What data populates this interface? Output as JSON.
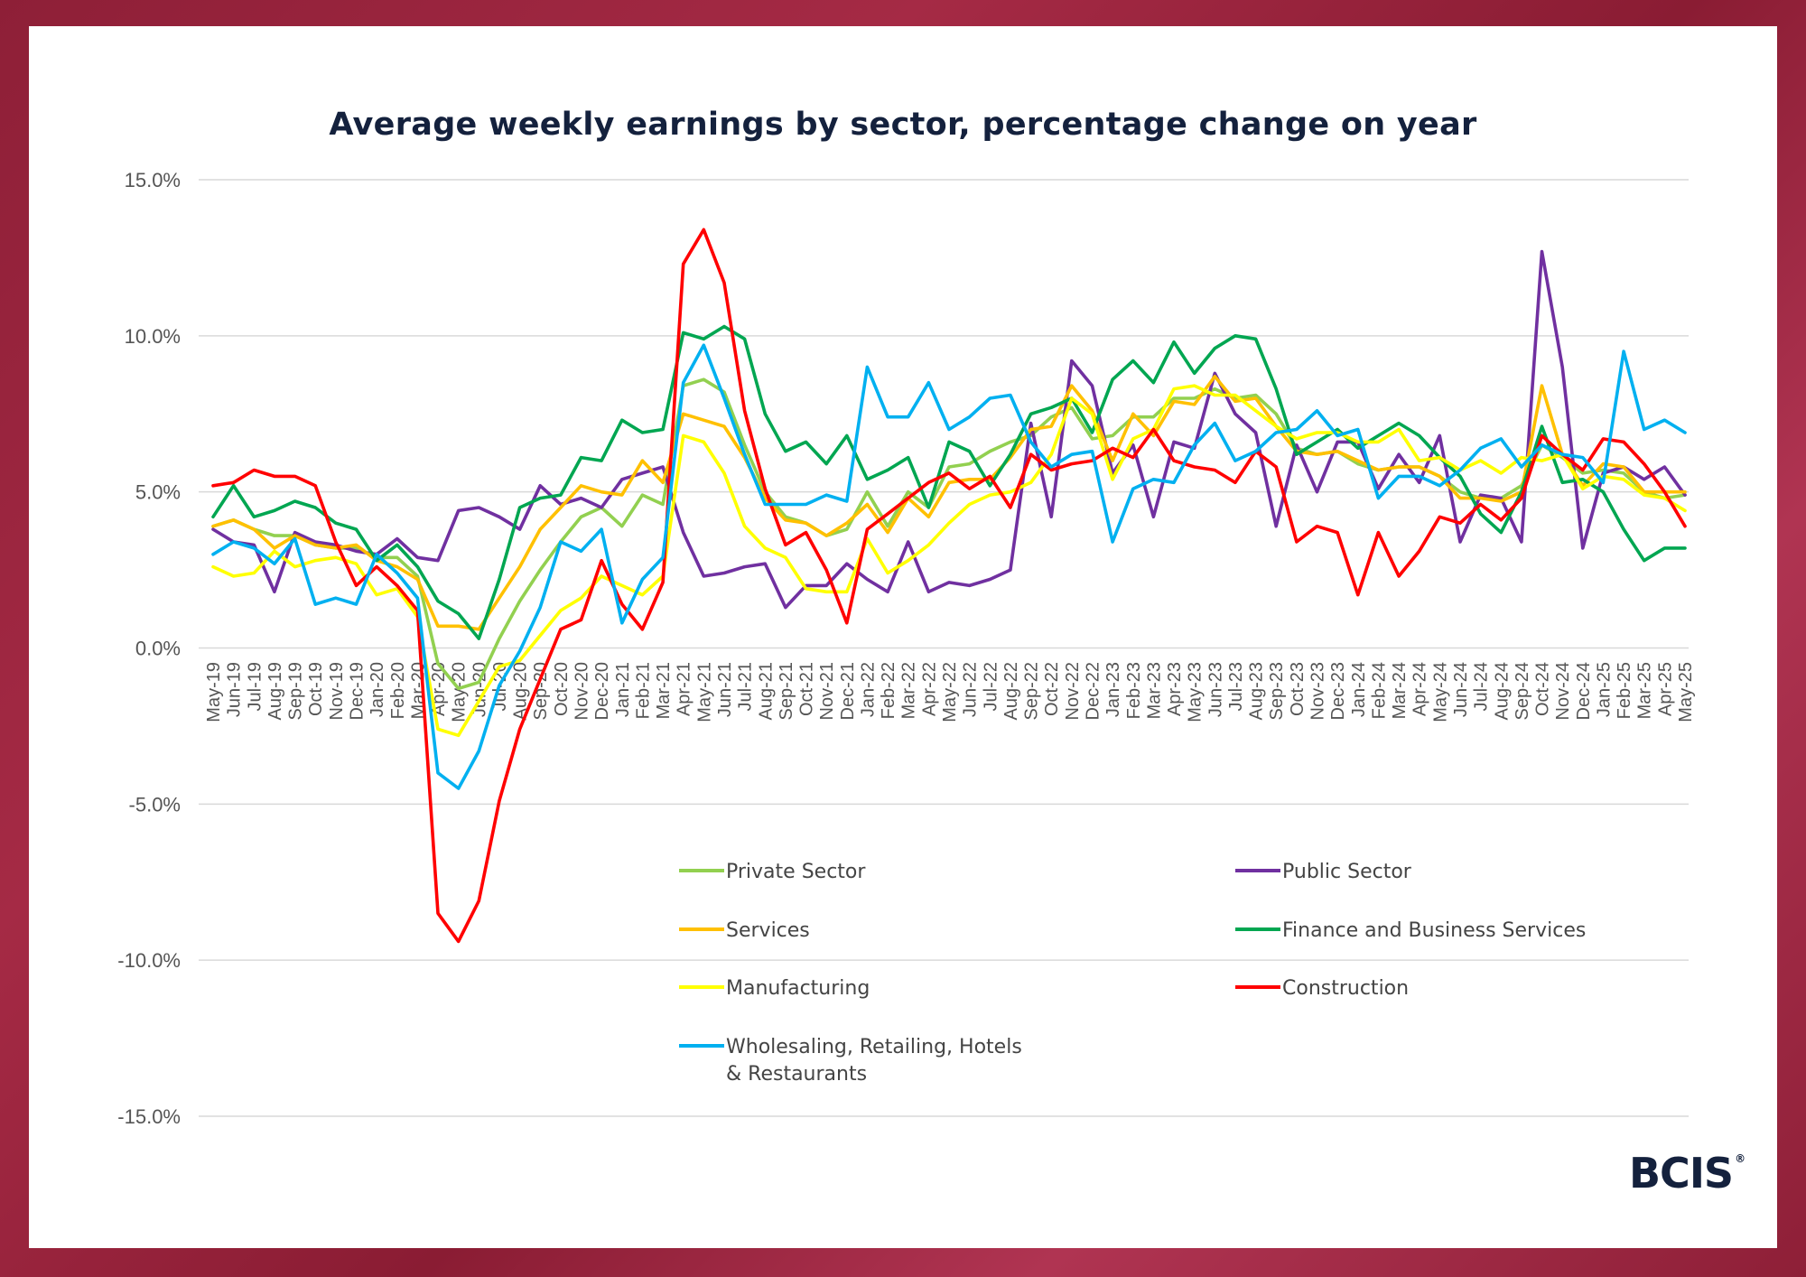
{
  "title": "Average weekly earnings by sector, percentage change on year",
  "logo": "BCIS",
  "logo_mark": "®",
  "chart_data": {
    "type": "line",
    "ylim": [
      -15,
      15
    ],
    "yticks": [
      "15.0%",
      "10.0%",
      "5.0%",
      "0.0%",
      "-5.0%",
      "-10.0%",
      "-15.0%"
    ],
    "grid": true,
    "legend_position": "bottom-center",
    "categories": [
      "May-19",
      "Jun-19",
      "Jul-19",
      "Aug-19",
      "Sep-19",
      "Oct-19",
      "Nov-19",
      "Dec-19",
      "Jan-20",
      "Feb-20",
      "Mar-20",
      "Apr-20",
      "May-20",
      "Jun-20",
      "Jul-20",
      "Aug-20",
      "Sep-20",
      "Oct-20",
      "Nov-20",
      "Dec-20",
      "Jan-21",
      "Feb-21",
      "Mar-21",
      "Apr-21",
      "May-21",
      "Jun-21",
      "Jul-21",
      "Aug-21",
      "Sep-21",
      "Oct-21",
      "Nov-21",
      "Dec-21",
      "Jan-22",
      "Feb-22",
      "Mar-22",
      "Apr-22",
      "May-22",
      "Jun-22",
      "Jul-22",
      "Aug-22",
      "Sep-22",
      "Oct-22",
      "Nov-22",
      "Dec-22",
      "Jan-23",
      "Feb-23",
      "Mar-23",
      "Apr-23",
      "May-23",
      "Jun-23",
      "Jul-23",
      "Aug-23",
      "Sep-23",
      "Oct-23",
      "Nov-23",
      "Dec-23",
      "Jan-24",
      "Feb-24",
      "Mar-24",
      "Apr-24",
      "May-24",
      "Jun-24",
      "Jul-24",
      "Aug-24",
      "Sep-24",
      "Oct-24",
      "Nov-24",
      "Dec-24",
      "Jan-25",
      "Feb-25",
      "Mar-25",
      "Apr-25",
      "May-25"
    ],
    "series": [
      {
        "name": "Private Sector",
        "color": "#92d050",
        "values": [
          3.9,
          4.1,
          3.8,
          3.6,
          3.6,
          3.3,
          3.2,
          3.2,
          2.9,
          2.9,
          2.3,
          -0.5,
          -1.3,
          -1.1,
          0.3,
          1.5,
          2.5,
          3.4,
          4.2,
          4.5,
          3.9,
          4.9,
          4.6,
          8.4,
          8.6,
          8.2,
          6.5,
          5.0,
          4.2,
          4.0,
          3.6,
          3.8,
          5.0,
          3.9,
          5.0,
          4.5,
          5.8,
          5.9,
          6.3,
          6.6,
          6.8,
          7.4,
          7.7,
          6.7,
          6.8,
          7.4,
          7.4,
          8.0,
          8.0,
          8.3,
          8.0,
          8.1,
          7.5,
          6.4,
          6.2,
          6.3,
          5.9,
          5.7,
          5.8,
          5.8,
          5.5,
          5.0,
          4.8,
          4.8,
          5.2,
          6.5,
          6.1,
          5.6,
          5.7,
          5.6,
          5.0,
          4.8,
          4.9
        ]
      },
      {
        "name": "Public Sector",
        "color": "#7030a0",
        "values": [
          3.8,
          3.4,
          3.3,
          1.8,
          3.7,
          3.4,
          3.3,
          3.1,
          3.0,
          3.5,
          2.9,
          2.8,
          4.4,
          4.5,
          4.2,
          3.8,
          5.2,
          4.6,
          4.8,
          4.5,
          5.4,
          5.6,
          5.8,
          3.7,
          2.3,
          2.4,
          2.6,
          2.7,
          1.3,
          2.0,
          2.0,
          2.7,
          2.2,
          1.8,
          3.4,
          1.8,
          2.1,
          2.0,
          2.2,
          2.5,
          7.2,
          4.2,
          9.2,
          8.4,
          5.6,
          6.5,
          4.2,
          6.6,
          6.4,
          8.8,
          7.5,
          6.9,
          3.9,
          6.5,
          5.0,
          6.6,
          6.6,
          5.1,
          6.2,
          5.3,
          6.8,
          3.4,
          4.9,
          4.8,
          3.4,
          12.7,
          9.0,
          3.2,
          5.6,
          5.8,
          5.4,
          5.8,
          4.9
        ]
      },
      {
        "name": "Services",
        "color": "#ffc000",
        "values": [
          3.9,
          4.1,
          3.8,
          3.2,
          3.6,
          3.3,
          3.2,
          3.3,
          2.8,
          2.6,
          2.2,
          0.7,
          0.7,
          0.6,
          1.6,
          2.6,
          3.8,
          4.5,
          5.2,
          5.0,
          4.9,
          6.0,
          5.3,
          7.5,
          7.3,
          7.1,
          6.1,
          4.8,
          4.1,
          4.0,
          3.6,
          4.0,
          4.6,
          3.7,
          4.8,
          4.2,
          5.3,
          5.4,
          5.4,
          6.1,
          7.0,
          7.1,
          8.4,
          7.6,
          6.0,
          7.5,
          6.8,
          7.9,
          7.8,
          8.7,
          7.9,
          8.0,
          7.1,
          6.3,
          6.2,
          6.3,
          6.0,
          5.7,
          5.8,
          5.8,
          5.5,
          4.8,
          4.8,
          4.7,
          5.0,
          8.4,
          6.2,
          5.2,
          5.9,
          5.8,
          5.0,
          5.0,
          5.0
        ]
      },
      {
        "name": "Finance and Business Services",
        "color": "#00a651",
        "values": [
          4.2,
          5.2,
          4.2,
          4.4,
          4.7,
          4.5,
          4.0,
          3.8,
          2.8,
          3.3,
          2.6,
          1.5,
          1.1,
          0.3,
          2.2,
          4.5,
          4.8,
          4.9,
          6.1,
          6.0,
          7.3,
          6.9,
          7.0,
          10.1,
          9.9,
          10.3,
          9.9,
          7.5,
          6.3,
          6.6,
          5.9,
          6.8,
          5.4,
          5.7,
          6.1,
          4.5,
          6.6,
          6.3,
          5.2,
          6.2,
          7.5,
          7.7,
          8.0,
          6.9,
          8.6,
          9.2,
          8.5,
          9.8,
          8.8,
          9.6,
          10.0,
          9.9,
          8.3,
          6.2,
          6.6,
          7.0,
          6.4,
          6.8,
          7.2,
          6.8,
          6.1,
          5.5,
          4.3,
          3.7,
          5.0,
          7.1,
          5.3,
          5.4,
          5.0,
          3.8,
          2.8,
          3.2,
          3.2
        ]
      },
      {
        "name": "Manufacturing",
        "color": "#ffff00",
        "values": [
          2.6,
          2.3,
          2.4,
          3.1,
          2.6,
          2.8,
          2.9,
          2.7,
          1.7,
          1.9,
          1.0,
          -2.6,
          -2.8,
          -1.7,
          -0.6,
          -0.4,
          0.4,
          1.2,
          1.6,
          2.3,
          2.0,
          1.7,
          2.3,
          6.8,
          6.6,
          5.6,
          3.9,
          3.2,
          2.9,
          1.9,
          1.8,
          1.8,
          3.5,
          2.4,
          2.8,
          3.3,
          4.0,
          4.6,
          4.9,
          5.0,
          5.3,
          6.2,
          8.0,
          7.5,
          5.4,
          6.7,
          7.0,
          8.3,
          8.4,
          8.1,
          8.1,
          7.6,
          7.1,
          6.7,
          6.9,
          6.9,
          6.6,
          6.6,
          7.0,
          6.0,
          6.1,
          5.7,
          6.0,
          5.6,
          6.1,
          6.0,
          6.2,
          5.1,
          5.5,
          5.4,
          4.9,
          4.8,
          4.4
        ]
      },
      {
        "name": "Construction",
        "color": "#ff0000",
        "values": [
          5.2,
          5.3,
          5.7,
          5.5,
          5.5,
          5.2,
          3.4,
          2.0,
          2.6,
          2.0,
          1.2,
          -8.5,
          -9.4,
          -8.1,
          -4.9,
          -2.6,
          -1.0,
          0.6,
          0.9,
          2.8,
          1.4,
          0.6,
          2.1,
          12.3,
          13.4,
          11.7,
          7.6,
          5.1,
          3.3,
          3.7,
          2.5,
          0.8,
          3.8,
          4.3,
          4.8,
          5.3,
          5.6,
          5.1,
          5.5,
          4.5,
          6.2,
          5.7,
          5.9,
          6.0,
          6.4,
          6.1,
          7.0,
          6.0,
          5.8,
          5.7,
          5.3,
          6.3,
          5.8,
          3.4,
          3.9,
          3.7,
          1.7,
          3.7,
          2.3,
          3.1,
          4.2,
          4.0,
          4.6,
          4.1,
          4.8,
          6.8,
          6.2,
          5.7,
          6.7,
          6.6,
          5.9,
          5.0,
          3.9
        ]
      },
      {
        "name": "Wholesaling, Retailing, Hotels & Restaurants",
        "color": "#00b0f0",
        "values": [
          3.0,
          3.4,
          3.2,
          2.7,
          3.5,
          1.4,
          1.6,
          1.4,
          3.0,
          2.4,
          1.6,
          -4.0,
          -4.5,
          -3.3,
          -1.2,
          -0.1,
          1.3,
          3.4,
          3.1,
          3.8,
          0.8,
          2.2,
          2.9,
          8.5,
          9.7,
          8.0,
          6.2,
          4.6,
          4.6,
          4.6,
          4.9,
          4.7,
          9.0,
          7.4,
          7.4,
          8.5,
          7.0,
          7.4,
          8.0,
          8.1,
          6.6,
          5.8,
          6.2,
          6.3,
          3.4,
          5.1,
          5.4,
          5.3,
          6.5,
          7.2,
          6.0,
          6.3,
          6.9,
          7.0,
          7.6,
          6.8,
          7.0,
          4.8,
          5.5,
          5.5,
          5.2,
          5.7,
          6.4,
          6.7,
          5.8,
          6.5,
          6.2,
          6.1,
          5.3,
          9.5,
          7.0,
          7.3,
          6.9
        ]
      }
    ],
    "legend_lines": {
      "Wholesaling, Retailing, Hotels & Restaurants": [
        "Wholesaling, Retailing, Hotels",
        "& Restaurants"
      ]
    }
  }
}
